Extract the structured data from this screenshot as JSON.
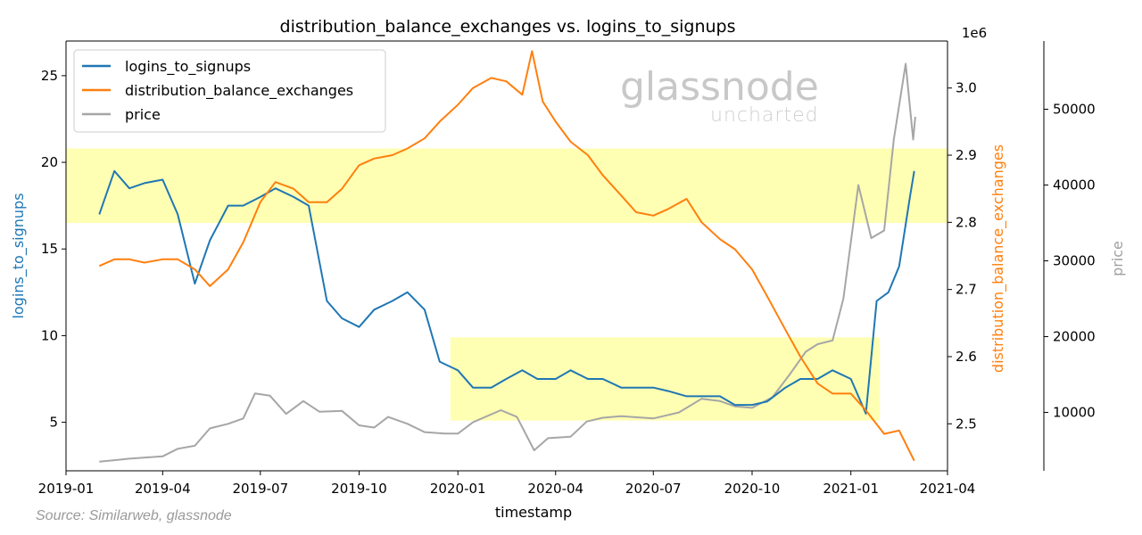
{
  "source_note": "Source: Similarweb, glassnode",
  "watermark": {
    "brand": "glassnode",
    "sub": "uncharted"
  },
  "colors": {
    "logins": "#1f77b4",
    "balance": "#ff7f0e",
    "price": "#a6a6a6",
    "highlight": "#ffff99",
    "overlap": "#2e8b8b"
  },
  "chart_data": {
    "type": "line",
    "title": "distribution_balance_exchanges vs. logins_to_signups",
    "xlabel": "timestamp",
    "x_ticks": [
      "2019-01",
      "2019-04",
      "2019-07",
      "2019-10",
      "2020-01",
      "2020-04",
      "2020-07",
      "2020-10",
      "2021-01",
      "2021-04"
    ],
    "xlim": [
      "2019-01-01",
      "2021-04-01"
    ],
    "left_axis": {
      "label": "logins_to_signups",
      "ticks": [
        5,
        10,
        15,
        20,
        25
      ],
      "ylim": [
        2.2,
        27
      ]
    },
    "right_axis": {
      "label": "distribution_balance_exchanges",
      "ticks": [
        2.5,
        2.6,
        2.7,
        2.8,
        2.9,
        3.0
      ],
      "ylim": [
        2.43,
        3.07
      ],
      "offset_label": "1e6"
    },
    "price_axis": {
      "label": "price",
      "ticks": [
        10000,
        20000,
        30000,
        40000,
        50000
      ],
      "ylim": [
        2300,
        59000
      ]
    },
    "legend": {
      "placement": "upper-left",
      "entries": [
        "logins_to_signups",
        "distribution_balance_exchanges",
        "price"
      ]
    },
    "highlight_bands": [
      {
        "x": [
          "2019-01-01",
          "2021-04-01"
        ],
        "y": [
          16.5,
          20.8
        ]
      },
      {
        "x": [
          "2019-12-25",
          "2021-01-28"
        ],
        "y": [
          5.1,
          9.9
        ]
      }
    ],
    "series": [
      {
        "name": "logins_to_signups",
        "axis": "left",
        "points": [
          [
            "2019-02-01",
            17
          ],
          [
            "2019-02-15",
            19.5
          ],
          [
            "2019-03-01",
            18.5
          ],
          [
            "2019-03-15",
            18.8
          ],
          [
            "2019-04-01",
            19
          ],
          [
            "2019-04-15",
            17
          ],
          [
            "2019-05-01",
            13
          ],
          [
            "2019-05-15",
            15.5
          ],
          [
            "2019-06-01",
            17.5
          ],
          [
            "2019-06-15",
            17.5
          ],
          [
            "2019-07-01",
            18
          ],
          [
            "2019-07-15",
            18.5
          ],
          [
            "2019-08-01",
            18
          ],
          [
            "2019-08-15",
            17.5
          ],
          [
            "2019-09-01",
            12
          ],
          [
            "2019-09-15",
            11
          ],
          [
            "2019-10-01",
            10.5
          ],
          [
            "2019-10-15",
            11.5
          ],
          [
            "2019-11-01",
            12
          ],
          [
            "2019-11-15",
            12.5
          ],
          [
            "2019-12-01",
            11.5
          ],
          [
            "2019-12-15",
            8.5
          ],
          [
            "2020-01-01",
            8
          ],
          [
            "2020-01-15",
            7
          ],
          [
            "2020-02-01",
            7
          ],
          [
            "2020-02-15",
            7.5
          ],
          [
            "2020-03-01",
            8
          ],
          [
            "2020-03-15",
            7.5
          ],
          [
            "2020-04-01",
            7.5
          ],
          [
            "2020-04-15",
            8
          ],
          [
            "2020-05-01",
            7.5
          ],
          [
            "2020-05-15",
            7.5
          ],
          [
            "2020-06-01",
            7
          ],
          [
            "2020-06-15",
            7
          ],
          [
            "2020-07-01",
            7
          ],
          [
            "2020-07-15",
            6.8
          ],
          [
            "2020-08-01",
            6.5
          ],
          [
            "2020-08-15",
            6.5
          ],
          [
            "2020-09-01",
            6.5
          ],
          [
            "2020-09-15",
            6
          ],
          [
            "2020-10-01",
            6
          ],
          [
            "2020-10-15",
            6.2
          ],
          [
            "2020-11-01",
            7
          ],
          [
            "2020-11-15",
            7.5
          ],
          [
            "2020-12-01",
            7.5
          ],
          [
            "2020-12-15",
            8
          ],
          [
            "2021-01-01",
            7.5
          ],
          [
            "2021-01-15",
            5.5
          ],
          [
            "2021-01-25",
            12
          ],
          [
            "2021-02-05",
            12.5
          ],
          [
            "2021-02-15",
            14
          ],
          [
            "2021-02-25",
            18
          ],
          [
            "2021-03-01",
            19.5
          ]
        ]
      },
      {
        "name": "distribution_balance_exchanges",
        "axis": "right",
        "points": [
          [
            "2019-02-01",
            2.735
          ],
          [
            "2019-02-15",
            2.745
          ],
          [
            "2019-03-01",
            2.745
          ],
          [
            "2019-03-15",
            2.74
          ],
          [
            "2019-04-01",
            2.745
          ],
          [
            "2019-04-15",
            2.745
          ],
          [
            "2019-05-01",
            2.73
          ],
          [
            "2019-05-15",
            2.705
          ],
          [
            "2019-06-01",
            2.73
          ],
          [
            "2019-06-15",
            2.77
          ],
          [
            "2019-07-01",
            2.83
          ],
          [
            "2019-07-15",
            2.86
          ],
          [
            "2019-08-01",
            2.85
          ],
          [
            "2019-08-15",
            2.83
          ],
          [
            "2019-09-01",
            2.83
          ],
          [
            "2019-09-15",
            2.85
          ],
          [
            "2019-10-01",
            2.885
          ],
          [
            "2019-10-15",
            2.895
          ],
          [
            "2019-11-01",
            2.9
          ],
          [
            "2019-11-15",
            2.91
          ],
          [
            "2019-12-01",
            2.925
          ],
          [
            "2019-12-15",
            2.95
          ],
          [
            "2020-01-01",
            2.975
          ],
          [
            "2020-01-15",
            3.0
          ],
          [
            "2020-02-01",
            3.015
          ],
          [
            "2020-02-15",
            3.01
          ],
          [
            "2020-03-01",
            2.99
          ],
          [
            "2020-03-10",
            3.055
          ],
          [
            "2020-03-20",
            2.98
          ],
          [
            "2020-04-01",
            2.95
          ],
          [
            "2020-04-15",
            2.92
          ],
          [
            "2020-05-01",
            2.9
          ],
          [
            "2020-05-15",
            2.87
          ],
          [
            "2020-06-01",
            2.84
          ],
          [
            "2020-06-15",
            2.815
          ],
          [
            "2020-07-01",
            2.81
          ],
          [
            "2020-07-15",
            2.82
          ],
          [
            "2020-08-01",
            2.835
          ],
          [
            "2020-08-15",
            2.8
          ],
          [
            "2020-09-01",
            2.775
          ],
          [
            "2020-09-15",
            2.76
          ],
          [
            "2020-10-01",
            2.73
          ],
          [
            "2020-10-15",
            2.69
          ],
          [
            "2020-11-01",
            2.64
          ],
          [
            "2020-11-15",
            2.6
          ],
          [
            "2020-12-01",
            2.56
          ],
          [
            "2020-12-15",
            2.545
          ],
          [
            "2021-01-01",
            2.545
          ],
          [
            "2021-01-15",
            2.52
          ],
          [
            "2021-02-01",
            2.485
          ],
          [
            "2021-02-15",
            2.49
          ],
          [
            "2021-03-01",
            2.445
          ]
        ]
      },
      {
        "name": "price",
        "axis": "price",
        "points": [
          [
            "2019-02-01",
            3500
          ],
          [
            "2019-03-01",
            3900
          ],
          [
            "2019-04-01",
            4200
          ],
          [
            "2019-04-15",
            5200
          ],
          [
            "2019-05-01",
            5600
          ],
          [
            "2019-05-15",
            7900
          ],
          [
            "2019-06-01",
            8500
          ],
          [
            "2019-06-15",
            9200
          ],
          [
            "2019-06-26",
            12500
          ],
          [
            "2019-07-10",
            12200
          ],
          [
            "2019-07-25",
            9800
          ],
          [
            "2019-08-10",
            11500
          ],
          [
            "2019-08-25",
            10100
          ],
          [
            "2019-09-15",
            10200
          ],
          [
            "2019-10-01",
            8300
          ],
          [
            "2019-10-15",
            8000
          ],
          [
            "2019-10-28",
            9400
          ],
          [
            "2019-11-15",
            8500
          ],
          [
            "2019-12-01",
            7400
          ],
          [
            "2019-12-20",
            7200
          ],
          [
            "2020-01-01",
            7200
          ],
          [
            "2020-01-15",
            8700
          ],
          [
            "2020-02-10",
            10300
          ],
          [
            "2020-02-25",
            9400
          ],
          [
            "2020-03-12",
            5000
          ],
          [
            "2020-03-25",
            6600
          ],
          [
            "2020-04-15",
            6800
          ],
          [
            "2020-04-30",
            8800
          ],
          [
            "2020-05-15",
            9300
          ],
          [
            "2020-06-01",
            9500
          ],
          [
            "2020-07-01",
            9200
          ],
          [
            "2020-07-25",
            10000
          ],
          [
            "2020-08-15",
            11800
          ],
          [
            "2020-09-01",
            11500
          ],
          [
            "2020-09-15",
            10800
          ],
          [
            "2020-10-01",
            10600
          ],
          [
            "2020-10-20",
            12000
          ],
          [
            "2020-11-05",
            15000
          ],
          [
            "2020-11-20",
            18000
          ],
          [
            "2020-12-01",
            19000
          ],
          [
            "2020-12-15",
            19500
          ],
          [
            "2020-12-25",
            25000
          ],
          [
            "2021-01-08",
            40000
          ],
          [
            "2021-01-20",
            33000
          ],
          [
            "2021-02-01",
            34000
          ],
          [
            "2021-02-10",
            46000
          ],
          [
            "2021-02-21",
            56000
          ],
          [
            "2021-02-28",
            46000
          ],
          [
            "2021-03-02",
            49000
          ]
        ]
      }
    ]
  }
}
